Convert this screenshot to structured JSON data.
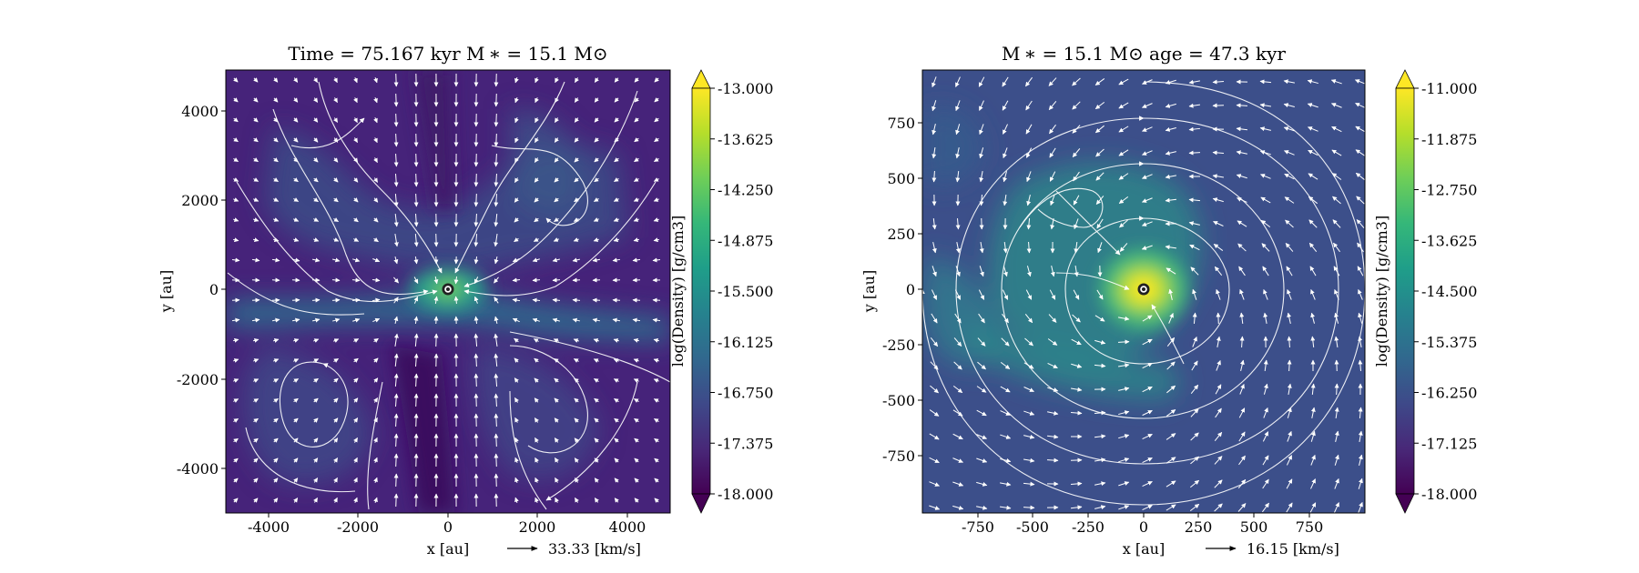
{
  "chart_data": [
    {
      "type": "heatmap",
      "title": "Time = 75.167 kyr    M ∗ = 15.1 M⊙",
      "xlabel": "x [au]",
      "ylabel": "y [au]",
      "xlim": [
        -5000,
        5000
      ],
      "ylim": [
        -5000,
        5000
      ],
      "xticks": [
        -4000,
        -2000,
        0,
        2000,
        4000
      ],
      "yticks": [
        4000,
        2000,
        0,
        -2000,
        -4000
      ],
      "xtick_labels": [
        "-4000",
        "-2000",
        "0",
        "2000",
        "4000"
      ],
      "ytick_labels": [
        "4000",
        "2000",
        "0",
        "-2000",
        "-4000"
      ],
      "colorbar": {
        "label": "log(Density) [g/cm3]",
        "range": [
          -18.0,
          -13.0
        ],
        "tick_labels": [
          "-13.000",
          "-13.625",
          "-14.250",
          "-14.875",
          "-15.500",
          "-16.125",
          "-16.750",
          "-17.375",
          "-18.000"
        ],
        "colormap": "viridis",
        "extend": "both"
      },
      "velocity_key": {
        "label": "33.33 [km/s]",
        "value": 33.33
      },
      "star": {
        "x": 0,
        "y": 0
      },
      "overlays": [
        "streamlines",
        "velocity-arrows"
      ]
    },
    {
      "type": "heatmap",
      "title": "M ∗ = 15.1 M⊙            age = 47.3 kyr",
      "xlabel": "x [au]",
      "ylabel": "y [au]",
      "xlim": [
        -1000,
        1000
      ],
      "ylim": [
        -1000,
        1000
      ],
      "xticks": [
        -750,
        -500,
        -250,
        0,
        250,
        500,
        750
      ],
      "yticks": [
        750,
        500,
        250,
        0,
        -250,
        -500,
        -750
      ],
      "xtick_labels": [
        "-750",
        "-500",
        "-250",
        "0",
        "250",
        "500",
        "750"
      ],
      "ytick_labels": [
        "750",
        "500",
        "250",
        "0",
        "-250",
        "-500",
        "-750"
      ],
      "colorbar": {
        "label": "log(Density) [g/cm3]",
        "range": [
          -18.0,
          -11.0
        ],
        "tick_labels": [
          "-11.000",
          "-11.875",
          "-12.750",
          "-13.625",
          "-14.500",
          "-15.375",
          "-16.250",
          "-17.125",
          "-18.000"
        ],
        "colormap": "viridis",
        "extend": "both"
      },
      "velocity_key": {
        "label": "16.15 [km/s]",
        "value": 16.15
      },
      "star": {
        "x": 0,
        "y": 0
      },
      "overlays": [
        "streamlines",
        "velocity-arrows"
      ]
    }
  ],
  "colors": {
    "viridis": [
      "#440154",
      "#482878",
      "#3e4989",
      "#31688e",
      "#26828e",
      "#1f9e89",
      "#35b779",
      "#6ece58",
      "#b5de2b",
      "#fde725"
    ],
    "overlay": "#ffffff",
    "star_ring": "#222222",
    "star_core": "#ffffff"
  }
}
